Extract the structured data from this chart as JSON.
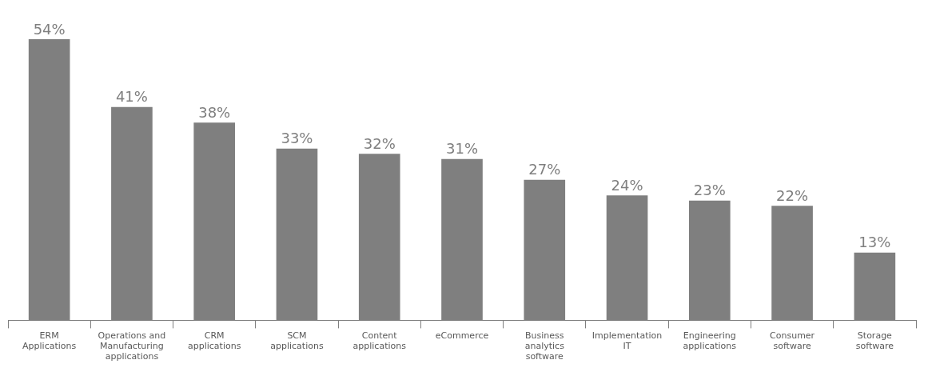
{
  "chart_data": {
    "type": "bar",
    "categories": [
      "ERM Applications",
      "Operations and Manufacturing applications",
      "CRM applications",
      "SCM applications",
      "Content applications",
      "eCommerce",
      "Business analytics software",
      "Implementation IT",
      "Engineering applications",
      "Consumer software",
      "Storage software"
    ],
    "values": [
      54,
      41,
      38,
      33,
      32,
      31,
      27,
      24,
      23,
      22,
      13
    ],
    "value_labels": [
      "54%",
      "41%",
      "38%",
      "33%",
      "32%",
      "31%",
      "27%",
      "24%",
      "23%",
      "22%",
      "13%"
    ],
    "color": "#7f7f7f",
    "grid": false,
    "legend": false,
    "tick_labels": "x"
  }
}
